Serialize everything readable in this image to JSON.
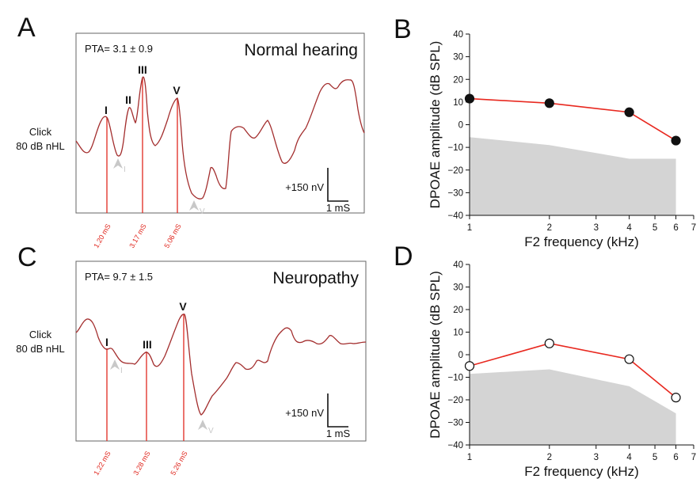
{
  "panels": {
    "a": {
      "letter": "A",
      "title": "Normal hearing",
      "pta": "PTA= 3.1 ± 0.9",
      "stim_line1": "Click",
      "stim_line2": "80 dB nHL",
      "peaks": [
        "I",
        "II",
        "III",
        "V"
      ],
      "latencies": [
        "1.20 mS",
        "3.17 mS",
        "5.06 mS"
      ],
      "scale_amp": "+150 nV",
      "scale_time": "1 mS",
      "arrows": [
        {
          "main": "A",
          "sub": "I"
        },
        {
          "main": "A",
          "sub": "V"
        }
      ]
    },
    "c": {
      "letter": "C",
      "title": "Neuropathy",
      "pta": "PTA= 9.7 ± 1.5",
      "stim_line1": "Click",
      "stim_line2": "80 dB nHL",
      "peaks": [
        "I",
        "III",
        "V"
      ],
      "latencies": [
        "1.22 mS",
        "3.28 mS",
        "5.26 mS"
      ],
      "scale_amp": "+150 nV",
      "scale_time": "1 mS",
      "arrows": [
        {
          "main": "A",
          "sub": "I"
        },
        {
          "main": "A",
          "sub": "V"
        }
      ]
    },
    "b": {
      "letter": "B"
    },
    "d": {
      "letter": "D"
    }
  },
  "colors": {
    "trace": "#a32e2e",
    "latency_line": "#e0281f",
    "dp_line": "#e8281f",
    "noise_fill": "#d4d4d4",
    "arrow": "#c8c8c8"
  },
  "chart_data": [
    {
      "panel": "B",
      "type": "line",
      "xlabel": "F2 frequency (kHz)",
      "ylabel": "DPOAE amplitude (dB SPL)",
      "x_scale": "log",
      "xticks": [
        1,
        2,
        3,
        4,
        5,
        6,
        7
      ],
      "xtick_labels": [
        "1",
        "2",
        "3",
        "4",
        "5",
        "6",
        "7"
      ],
      "ylim": [
        -40,
        40
      ],
      "yticks": [
        -40,
        -30,
        -20,
        -10,
        0,
        10,
        20,
        30,
        40
      ],
      "ytick_labels": [
        "−40",
        "−30",
        "−20",
        "−10",
        "0",
        "10",
        "20",
        "30",
        "40"
      ],
      "series": [
        {
          "x": [
            1,
            2,
            4,
            6
          ],
          "values": [
            11.5,
            9.5,
            5.5,
            -7
          ],
          "marker": "filled"
        }
      ],
      "noise_floor": {
        "x": [
          1,
          2,
          4,
          6
        ],
        "values": [
          -5.5,
          -9,
          -15,
          -15
        ]
      }
    },
    {
      "panel": "D",
      "type": "line",
      "xlabel": "F2 frequency (kHz)",
      "ylabel": "DPOAE amplitude (dB SPL)",
      "x_scale": "log",
      "xticks": [
        1,
        2,
        3,
        4,
        5,
        6,
        7
      ],
      "xtick_labels": [
        "1",
        "2",
        "3",
        "4",
        "5",
        "6",
        "7"
      ],
      "ylim": [
        -40,
        40
      ],
      "yticks": [
        -40,
        -30,
        -20,
        -10,
        0,
        10,
        20,
        30,
        40
      ],
      "ytick_labels": [
        "−40",
        "−30",
        "−20",
        "−10",
        "0",
        "10",
        "20",
        "30",
        "40"
      ],
      "series": [
        {
          "x": [
            1,
            2,
            4,
            6
          ],
          "values": [
            -5,
            5,
            -2,
            -19
          ],
          "marker": "open"
        }
      ],
      "noise_floor": {
        "x": [
          1,
          2,
          4,
          6
        ],
        "values": [
          -8.5,
          -6.5,
          -14,
          -26
        ]
      }
    }
  ]
}
